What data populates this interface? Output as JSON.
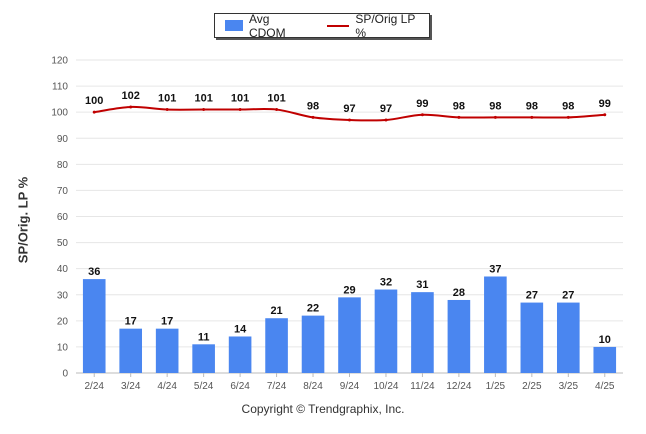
{
  "legend": {
    "bar_label": "Avg CDOM",
    "line_label": "SP/Orig LP %"
  },
  "footer": "Copyright © Trendgraphix, Inc.",
  "colors": {
    "bar": "#4a86f0",
    "line": "#c00000",
    "grid": "#e6e6e6"
  },
  "chart_data": {
    "type": "bar",
    "categories": [
      "2/24",
      "3/24",
      "4/24",
      "5/24",
      "6/24",
      "7/24",
      "8/24",
      "9/24",
      "10/24",
      "11/24",
      "12/24",
      "1/25",
      "2/25",
      "3/25",
      "4/25"
    ],
    "series": [
      {
        "name": "Avg CDOM",
        "type": "bar",
        "values": [
          36,
          17,
          17,
          11,
          14,
          21,
          22,
          29,
          32,
          31,
          28,
          37,
          27,
          27,
          10
        ]
      },
      {
        "name": "SP/Orig LP %",
        "type": "line",
        "values": [
          100,
          102,
          101,
          101,
          101,
          101,
          98,
          97,
          97,
          99,
          98,
          98,
          98,
          98,
          99
        ]
      }
    ],
    "ylabel": "SP/Orig. LP %",
    "ylim": [
      0,
      120
    ],
    "yticks": [
      0,
      10,
      20,
      30,
      40,
      50,
      60,
      70,
      80,
      90,
      100,
      110,
      120
    ],
    "grid": true,
    "legend_position": "top-center"
  }
}
